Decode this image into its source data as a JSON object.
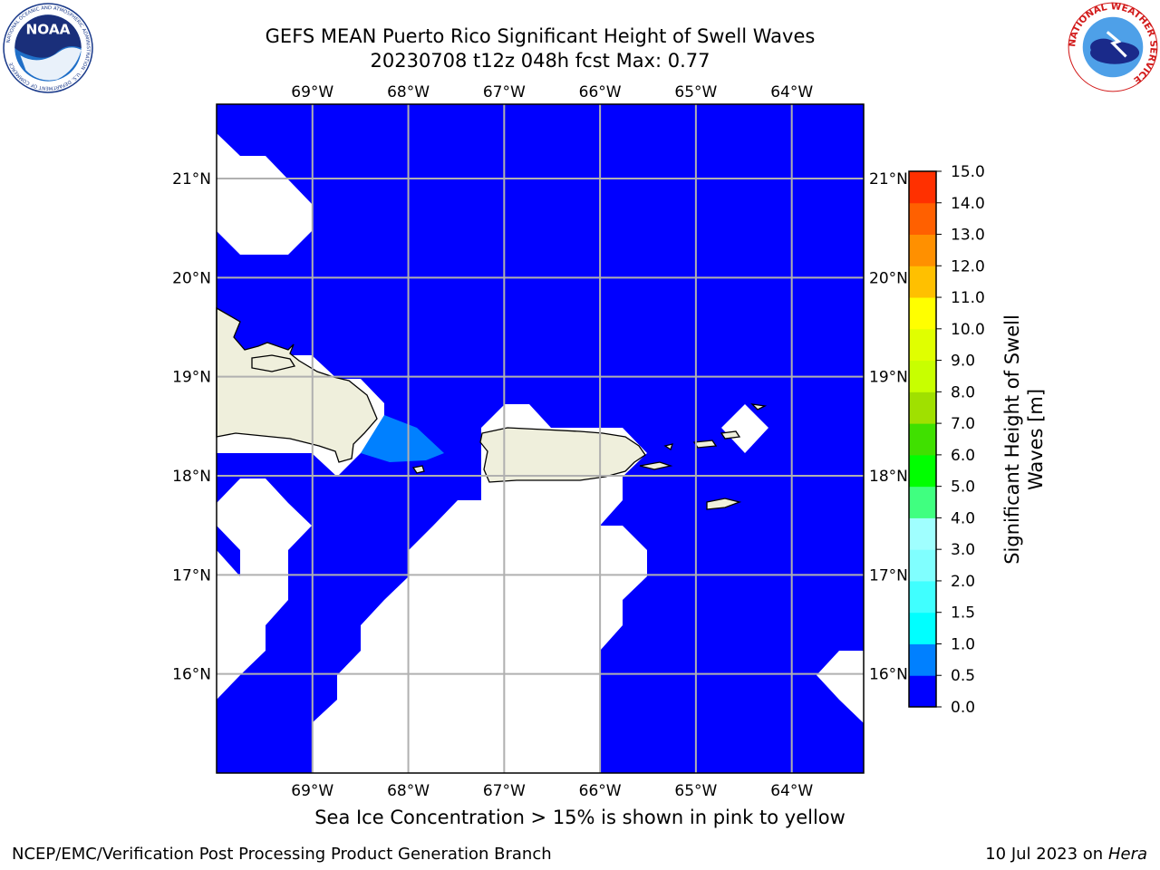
{
  "header": {
    "title_line1": "GEFS MEAN Puerto Rico Significant Height of Swell Waves",
    "title_line2": "20230708 t12z 048h fcst   Max: 0.77"
  },
  "logos": {
    "noaa_text": "NOAA",
    "noaa_ring_text": "NATIONAL OCEANIC AND ATMOSPHERIC ADMINISTRATION · U.S. DEPARTMENT OF COMMERCE",
    "nws_ring_text": "NATIONAL WEATHER SERVICE"
  },
  "map": {
    "lon_ticks": [
      "69°W",
      "68°W",
      "67°W",
      "66°W",
      "65°W",
      "64°W"
    ],
    "lat_ticks": [
      "21°N",
      "20°N",
      "19°N",
      "18°N",
      "17°N",
      "16°N"
    ],
    "lon_range": [
      -70.0,
      -63.25
    ],
    "lat_range": [
      15.0,
      21.75
    ],
    "ocean_color": "#0000ff",
    "mask_color": "#ffffff",
    "land_color": "#efefdc",
    "max_patch_color": "#0080ff"
  },
  "colorbar": {
    "label_line1": "Significant Height of Swell",
    "label_line2": "Waves [m]",
    "levels": [
      "0.0",
      "0.5",
      "1.0",
      "1.5",
      "2.0",
      "3.0",
      "4.0",
      "5.0",
      "6.0",
      "7.0",
      "8.0",
      "9.0",
      "10.0",
      "11.0",
      "12.0",
      "13.0",
      "14.0",
      "15.0"
    ],
    "colors": [
      "#0000ff",
      "#0080ff",
      "#00ffff",
      "#40ffff",
      "#80ffff",
      "#a0ffff",
      "#40ff80",
      "#00ff00",
      "#40e000",
      "#a0e000",
      "#c8ff00",
      "#e0ff00",
      "#ffff00",
      "#ffc000",
      "#ff9000",
      "#ff6000",
      "#ff3000",
      "#ff0000"
    ]
  },
  "footer": {
    "ice_note": "Sea Ice Concentration > 15% is shown in pink to yellow",
    "branch": "NCEP/EMC/Verification Post Processing Product Generation Branch",
    "date_prefix": "10 Jul 2023 on ",
    "date_host": "Hera"
  }
}
